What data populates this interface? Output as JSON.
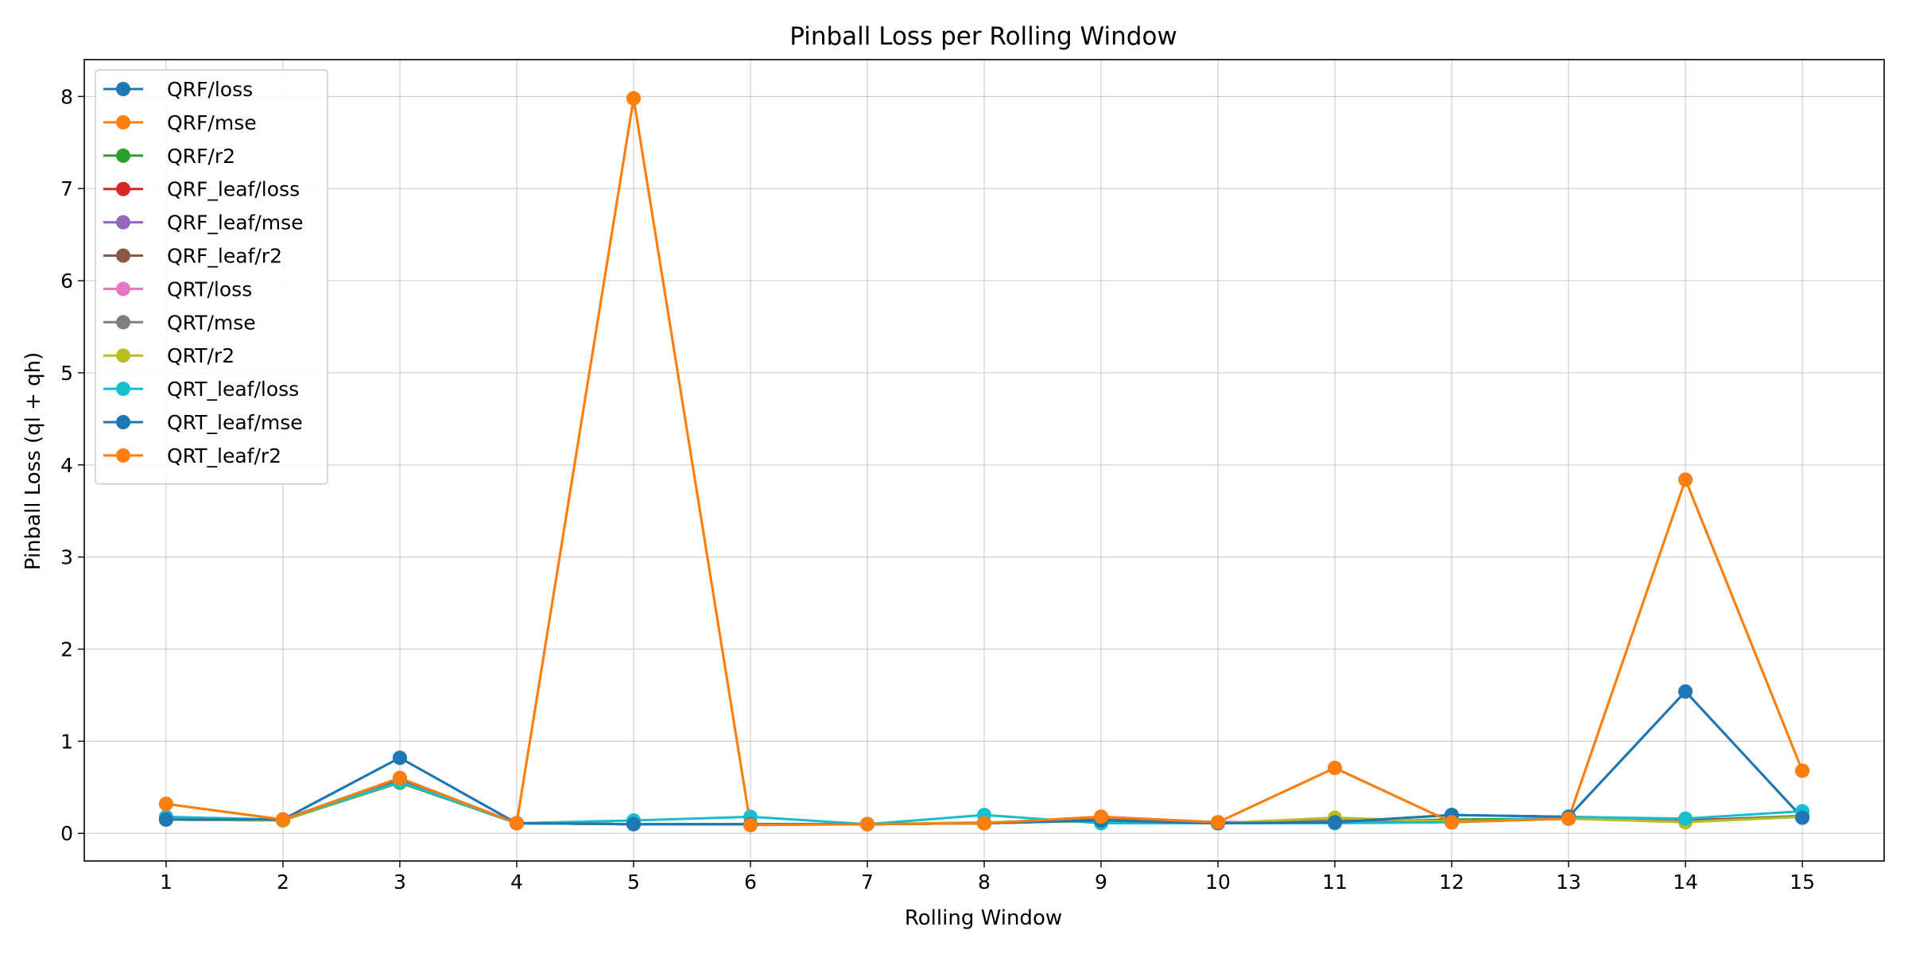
{
  "chart_data": {
    "type": "line",
    "title": "Pinball Loss per Rolling Window",
    "xlabel": "Rolling Window",
    "ylabel": "Pinball Loss (ql + qh)",
    "x": [
      1,
      2,
      3,
      4,
      5,
      6,
      7,
      8,
      9,
      10,
      11,
      12,
      13,
      14,
      15
    ],
    "xlim": [
      0.3,
      15.7
    ],
    "ylim": [
      -0.3,
      8.4
    ],
    "yticks": [
      0,
      1,
      2,
      3,
      4,
      5,
      6,
      7,
      8
    ],
    "grid": true,
    "legend_position": "upper-left",
    "series": [
      {
        "name": "QRF/loss",
        "color": "#1f77b4",
        "values": [
          0.15,
          0.15,
          0.82,
          0.11,
          0.1,
          0.1,
          0.1,
          0.11,
          0.14,
          0.11,
          0.12,
          0.2,
          0.18,
          1.54,
          0.17
        ]
      },
      {
        "name": "QRF/mse",
        "color": "#ff7f0e",
        "values": [
          0.32,
          0.15,
          0.6,
          0.11,
          7.98,
          0.09,
          0.1,
          0.11,
          0.18,
          0.12,
          0.71,
          0.12,
          0.16,
          3.84,
          0.68
        ]
      },
      {
        "name": "QRF/r2",
        "color": "#2ca02c",
        "values": [
          0.15,
          0.14,
          0.55,
          0.11,
          0.1,
          0.1,
          0.1,
          0.11,
          0.14,
          0.11,
          0.13,
          0.15,
          0.16,
          0.14,
          0.19
        ]
      },
      {
        "name": "QRF_leaf/loss",
        "color": "#d62728",
        "values": [
          0.15,
          0.15,
          0.6,
          0.11,
          0.1,
          0.1,
          0.1,
          0.11,
          0.18,
          0.12,
          0.13,
          0.13,
          0.16,
          0.14,
          0.18
        ]
      },
      {
        "name": "QRF_leaf/mse",
        "color": "#9467bd",
        "values": [
          0.15,
          0.15,
          0.57,
          0.11,
          0.1,
          0.1,
          0.1,
          0.11,
          0.14,
          0.11,
          0.13,
          0.13,
          0.16,
          0.13,
          0.18
        ]
      },
      {
        "name": "QRF_leaf/r2",
        "color": "#8c564b",
        "values": [
          0.15,
          0.15,
          0.58,
          0.11,
          0.1,
          0.1,
          0.1,
          0.11,
          0.15,
          0.11,
          0.13,
          0.13,
          0.16,
          0.13,
          0.18
        ]
      },
      {
        "name": "QRT/loss",
        "color": "#e377c2",
        "values": [
          0.15,
          0.14,
          0.56,
          0.11,
          0.1,
          0.1,
          0.1,
          0.11,
          0.14,
          0.11,
          0.14,
          0.13,
          0.16,
          0.13,
          0.18
        ]
      },
      {
        "name": "QRT/mse",
        "color": "#7f7f7f",
        "values": [
          0.15,
          0.14,
          0.56,
          0.11,
          0.1,
          0.1,
          0.1,
          0.11,
          0.14,
          0.11,
          0.14,
          0.13,
          0.16,
          0.13,
          0.18
        ]
      },
      {
        "name": "QRT/r2",
        "color": "#bcbd22",
        "values": [
          0.15,
          0.14,
          0.56,
          0.11,
          0.1,
          0.1,
          0.1,
          0.12,
          0.13,
          0.11,
          0.17,
          0.13,
          0.16,
          0.12,
          0.18
        ]
      },
      {
        "name": "QRT_leaf/loss",
        "color": "#17becf",
        "values": [
          0.18,
          0.15,
          0.56,
          0.11,
          0.14,
          0.18,
          0.1,
          0.2,
          0.11,
          0.11,
          0.11,
          0.12,
          0.18,
          0.16,
          0.24
        ]
      },
      {
        "name": "QRT_leaf/mse",
        "color": "#1f77b4",
        "values": [
          0.15,
          0.15,
          0.82,
          0.11,
          0.1,
          0.1,
          0.1,
          0.11,
          0.14,
          0.11,
          0.12,
          0.2,
          0.18,
          1.54,
          0.17
        ]
      },
      {
        "name": "QRT_leaf/r2",
        "color": "#ff7f0e",
        "values": [
          0.32,
          0.15,
          0.6,
          0.11,
          7.98,
          0.09,
          0.1,
          0.11,
          0.18,
          0.12,
          0.71,
          0.12,
          0.16,
          3.84,
          0.68
        ]
      }
    ]
  }
}
